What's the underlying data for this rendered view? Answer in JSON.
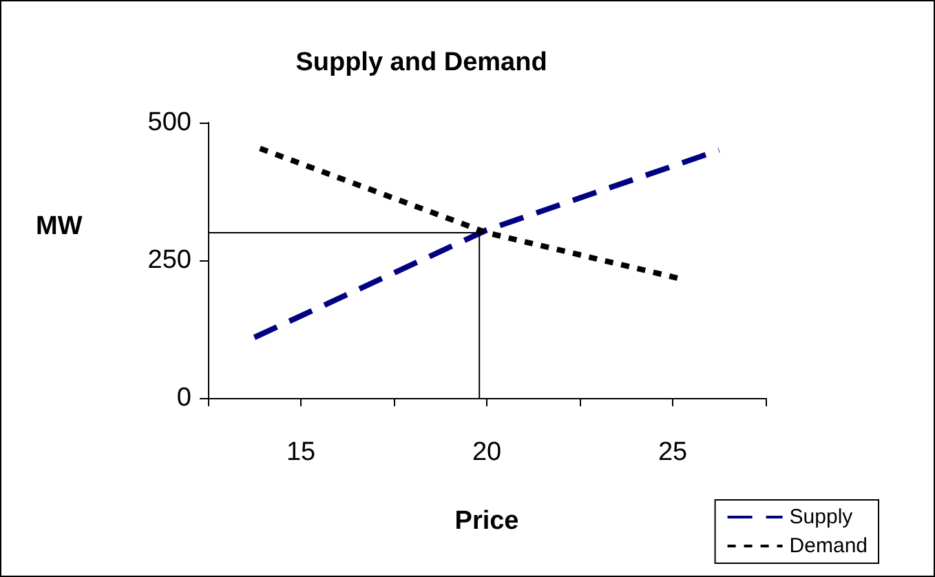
{
  "chart_data": {
    "type": "line",
    "title": "Supply and Demand",
    "xlabel": "Price",
    "ylabel": "MW",
    "xlim": [
      12.5,
      27.5
    ],
    "xticks": [
      {
        "value": 12.5,
        "label": null
      },
      15,
      {
        "value": 17.5,
        "label": null
      },
      20,
      {
        "value": 22.5,
        "label": null
      },
      25,
      {
        "value": 27.5,
        "label": null
      }
    ],
    "ylim": [
      0,
      500
    ],
    "yticks": [
      0,
      250,
      500
    ],
    "series": [
      {
        "name": "Supply",
        "color": "#000080",
        "line_style": "dashed",
        "x": [
          13.75,
          20,
          26.25
        ],
        "values": [
          110,
          305,
          450
        ]
      },
      {
        "name": "Demand",
        "color": "#000000",
        "line_style": "dotted",
        "x": [
          13.9,
          20,
          25.3
        ],
        "values": [
          453,
          300,
          215
        ]
      },
      {
        "color": "#000000",
        "line_style": "solid",
        "x": [
          12.5,
          19.8,
          19.8
        ],
        "values": [
          300,
          300,
          0
        ]
      }
    ],
    "marker": "none",
    "grid": false,
    "legend": "bottom right"
  }
}
